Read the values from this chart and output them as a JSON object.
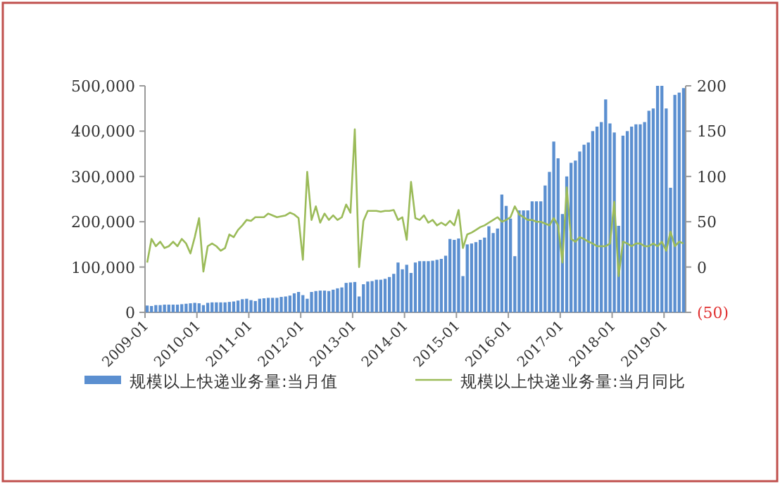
{
  "chart_data": {
    "type": "bar",
    "categories": [
      "2009-01",
      null,
      null,
      null,
      null,
      null,
      null,
      null,
      null,
      null,
      null,
      null,
      "2010-01",
      null,
      null,
      null,
      null,
      null,
      null,
      null,
      null,
      null,
      null,
      null,
      "2011-01",
      null,
      null,
      null,
      null,
      null,
      null,
      null,
      null,
      null,
      null,
      null,
      "2012-01",
      null,
      null,
      null,
      null,
      null,
      null,
      null,
      null,
      null,
      null,
      null,
      "2013-01",
      null,
      null,
      null,
      null,
      null,
      null,
      null,
      null,
      null,
      null,
      null,
      "2014-01",
      null,
      null,
      null,
      null,
      null,
      null,
      null,
      null,
      null,
      null,
      null,
      "2015-01",
      null,
      null,
      null,
      null,
      null,
      null,
      null,
      null,
      null,
      null,
      null,
      "2016-01",
      null,
      null,
      null,
      null,
      null,
      null,
      null,
      null,
      null,
      null,
      null,
      "2017-01",
      null,
      null,
      null,
      null,
      null,
      null,
      null,
      null,
      null,
      null,
      null,
      "2018-01",
      null,
      null,
      null,
      null,
      null,
      null,
      null,
      null,
      null,
      null,
      null,
      "2019-01",
      null,
      null,
      null,
      null
    ],
    "series": [
      {
        "name": "规模以上快递业务量:当月值",
        "color": "#5b8fd0",
        "values": [
          15000,
          14000,
          16000,
          16000,
          17000,
          17000,
          17000,
          17000,
          18000,
          19000,
          20000,
          21000,
          20000,
          16000,
          21000,
          22000,
          22000,
          22000,
          22000,
          23000,
          24000,
          26000,
          29000,
          30000,
          27000,
          25000,
          30000,
          31000,
          32000,
          32000,
          32000,
          34000,
          35000,
          37000,
          42000,
          45000,
          38000,
          30000,
          45000,
          47000,
          48000,
          48000,
          47000,
          50000,
          53000,
          55000,
          65000,
          66000,
          67000,
          35000,
          62000,
          68000,
          69000,
          72000,
          72000,
          74000,
          78000,
          85000,
          110000,
          95000,
          105000,
          87000,
          110000,
          113000,
          113000,
          113000,
          114000,
          116000,
          118000,
          125000,
          162000,
          160000,
          163000,
          80000,
          150000,
          152000,
          155000,
          160000,
          165000,
          190000,
          175000,
          185000,
          260000,
          235000,
          207000,
          124000,
          225000,
          225000,
          225000,
          245000,
          245000,
          245000,
          280000,
          310000,
          377000,
          340000,
          217000,
          300000,
          330000,
          335000,
          355000,
          370000,
          375000,
          400000,
          410000,
          420000,
          470000,
          417000,
          397000,
          191000,
          390000,
          400000,
          410000,
          415000,
          415000,
          420000,
          445000,
          450000,
          500000,
          500000,
          450000,
          275000,
          480000,
          485000,
          495000
        ]
      },
      {
        "name": "规模以上快递业务量:当月同比",
        "type": "line",
        "axis": "y2",
        "color": "#9bbb59",
        "values": [
          5,
          31,
          23,
          28,
          21,
          23,
          28,
          23,
          31,
          26,
          15,
          33,
          54,
          -5,
          23,
          26,
          23,
          18,
          21,
          36,
          33,
          41,
          46,
          52,
          51,
          55,
          55,
          55,
          59,
          57,
          55,
          56,
          57,
          60,
          58,
          54,
          8,
          105,
          52,
          67,
          49,
          59,
          52,
          57,
          52,
          55,
          69,
          60,
          152,
          0,
          51,
          62,
          62,
          62,
          61,
          62,
          62,
          63,
          52,
          55,
          30,
          94,
          54,
          52,
          57,
          49,
          52,
          46,
          49,
          46,
          51,
          46,
          63,
          21,
          36,
          38,
          41,
          44,
          46,
          49,
          52,
          55,
          50,
          52,
          55,
          67,
          58,
          55,
          52,
          52,
          50,
          50,
          48,
          46,
          54,
          46,
          5,
          88,
          31,
          28,
          33,
          31,
          28,
          26,
          23,
          23,
          23,
          26,
          72,
          -10,
          28,
          26,
          23,
          26,
          26,
          23,
          23,
          26,
          23,
          28,
          18,
          39,
          23,
          28,
          26
        ]
      }
    ],
    "ylim": [
      0,
      500000
    ],
    "yticks": [
      {
        "value": 0,
        "label": "0"
      },
      {
        "value": 100000,
        "label": "100,000"
      },
      {
        "value": 200000,
        "label": "200,000"
      },
      {
        "value": 300000,
        "label": "300,000"
      },
      {
        "value": 400000,
        "label": "400,000"
      },
      {
        "value": 500000,
        "label": "500,000"
      }
    ],
    "y2lim": [
      -50,
      200
    ],
    "y2ticks": [
      {
        "value": -50,
        "label": "(50)"
      },
      0,
      50,
      100,
      150,
      200
    ],
    "legend": "bottom"
  }
}
